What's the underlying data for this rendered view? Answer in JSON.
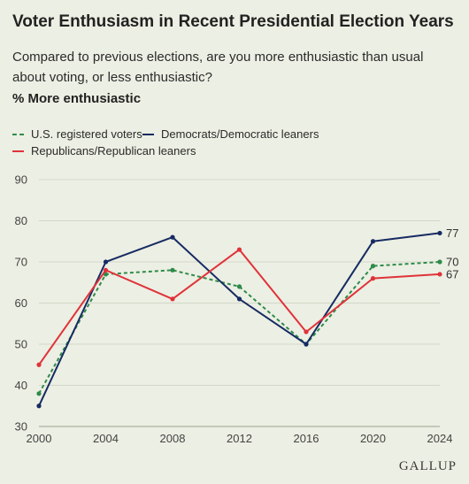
{
  "title": "Voter Enthusiasm in Recent Presidential Election Years",
  "subtitle": "Compared to previous elections, are you more enthusiastic than usual about voting, or less enthusiastic?",
  "measure_label": "% More enthusiastic",
  "brand": "GALLUP",
  "chart_data": {
    "type": "line",
    "title": "Voter Enthusiasm in Recent Presidential Election Years",
    "ylabel": "% More enthusiastic",
    "xlabel": "",
    "x": [
      2000,
      2004,
      2008,
      2012,
      2016,
      2020,
      2024
    ],
    "ylim": [
      30,
      90
    ],
    "yticks": [
      30,
      40,
      50,
      60,
      70,
      80,
      90
    ],
    "grid": "horizontal",
    "legend_position": "top-left",
    "series": [
      {
        "name": "U.S. registered voters",
        "color": "#2e8b4a",
        "line_style": "dashed",
        "values": [
          38,
          67,
          68,
          64,
          50,
          69,
          70
        ],
        "end_label": "70"
      },
      {
        "name": "Democrats/Democratic leaners",
        "color": "#162b63",
        "line_style": "solid",
        "values": [
          35,
          70,
          76,
          61,
          50,
          75,
          77
        ],
        "end_label": "77"
      },
      {
        "name": "Republicans/Republican leaners",
        "color": "#e0323a",
        "line_style": "solid",
        "values": [
          45,
          68,
          61,
          73,
          53,
          66,
          67
        ],
        "end_label": "67"
      }
    ]
  }
}
